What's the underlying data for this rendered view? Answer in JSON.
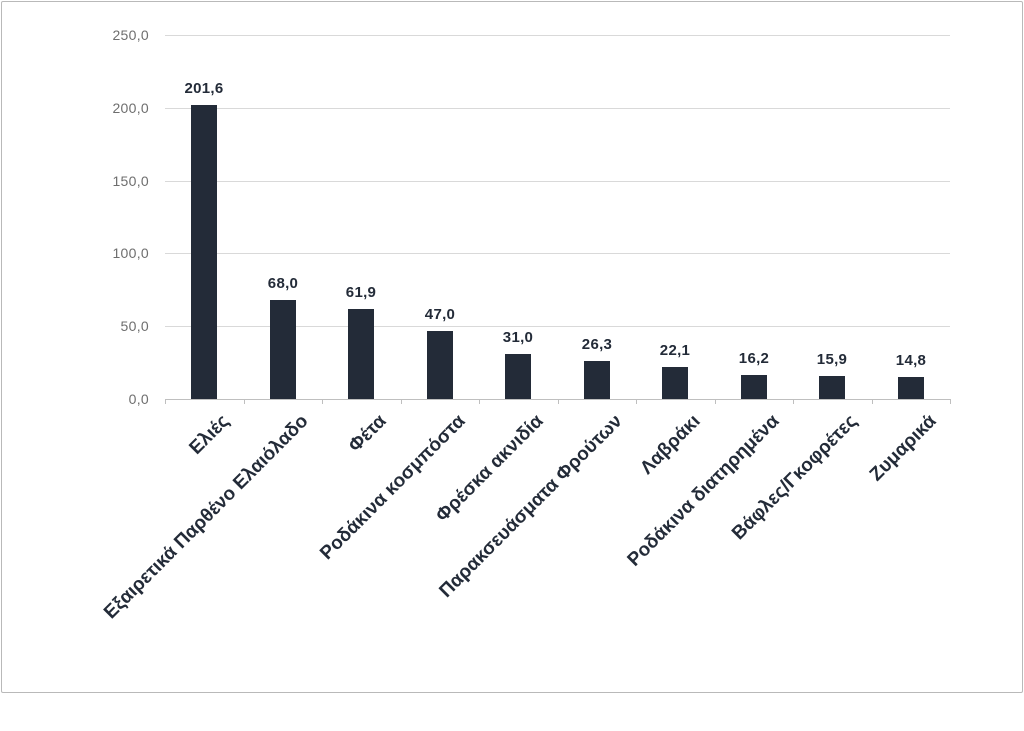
{
  "chart_data": {
    "type": "bar",
    "title": "",
    "xlabel": "",
    "ylabel": "",
    "categories": [
      "Ελιές",
      "Εξαιρετικά Παρθένο Ελαιόλαδο",
      "Φέτα",
      "Ροδάκινα κοσμπόστα",
      "Φρέσκα ακνιδία",
      "Παρακσευάσματα Φρούτων",
      "Λαβράκι",
      "Ροδάκινα διατηρημένα",
      "Βάφλες/Γκοφρέτες",
      "Ζυμαρικά"
    ],
    "values": [
      201.6,
      68.0,
      61.9,
      47.0,
      31.0,
      26.3,
      22.1,
      16.2,
      15.9,
      14.8
    ],
    "value_labels": [
      "201,6",
      "68,0",
      "61,9",
      "47,0",
      "31,0",
      "26,3",
      "22,1",
      "16,2",
      "15,9",
      "14,8"
    ],
    "y_tick_labels": [
      "0,0",
      "50,0",
      "100,0",
      "150,0",
      "200,0",
      "250,0"
    ],
    "y_tick_values": [
      0,
      50,
      100,
      150,
      200,
      250
    ],
    "ylim": [
      0,
      250
    ],
    "grid": true,
    "legend": "none",
    "colors": {
      "bar": "#232b38",
      "value_label": "#232b38",
      "category_label": "#232b38",
      "axis_tick_text": "#6e6e6e",
      "gridline": "#d9d9d9",
      "axis_line": "#bfbfbf"
    }
  }
}
